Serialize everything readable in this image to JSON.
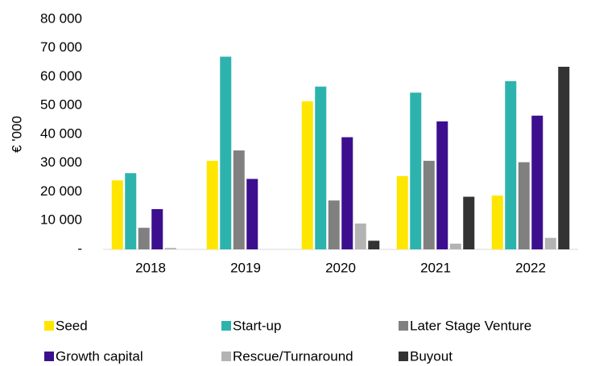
{
  "chart_data": {
    "type": "bar",
    "y_label": "€ '000",
    "categories": [
      "2018",
      "2019",
      "2020",
      "2021",
      "2022"
    ],
    "series": [
      {
        "name": "Seed",
        "color": "#ffe600",
        "values": [
          24000,
          30800,
          51500,
          25500,
          18700
        ]
      },
      {
        "name": "Start-up",
        "color": "#2db3ad",
        "values": [
          26500,
          67000,
          56600,
          54500,
          58500
        ]
      },
      {
        "name": "Later Stage Venture",
        "color": "#808080",
        "values": [
          7500,
          34400,
          17000,
          30800,
          30300
        ]
      },
      {
        "name": "Growth capital",
        "color": "#3c0f8f",
        "values": [
          14000,
          24500,
          39000,
          44500,
          46500
        ]
      },
      {
        "name": "Rescue/Turnaround",
        "color": "#b3b3b3",
        "values": [
          500,
          0,
          9000,
          2000,
          4000
        ]
      },
      {
        "name": "Buyout",
        "color": "#333333",
        "values": [
          0,
          0,
          3000,
          18300,
          63500
        ]
      }
    ],
    "ylim": [
      0,
      80000
    ],
    "yticks": [
      {
        "value": 0,
        "label": "-"
      },
      {
        "value": 10000,
        "label": "10 000"
      },
      {
        "value": 20000,
        "label": "20 000"
      },
      {
        "value": 30000,
        "label": "30 000"
      },
      {
        "value": 40000,
        "label": "40 000"
      },
      {
        "value": 50000,
        "label": "50 000"
      },
      {
        "value": 60000,
        "label": "60 000"
      },
      {
        "value": 70000,
        "label": "70 000"
      },
      {
        "value": 80000,
        "label": "80 000"
      }
    ],
    "grid": false,
    "legend": "bottom"
  }
}
